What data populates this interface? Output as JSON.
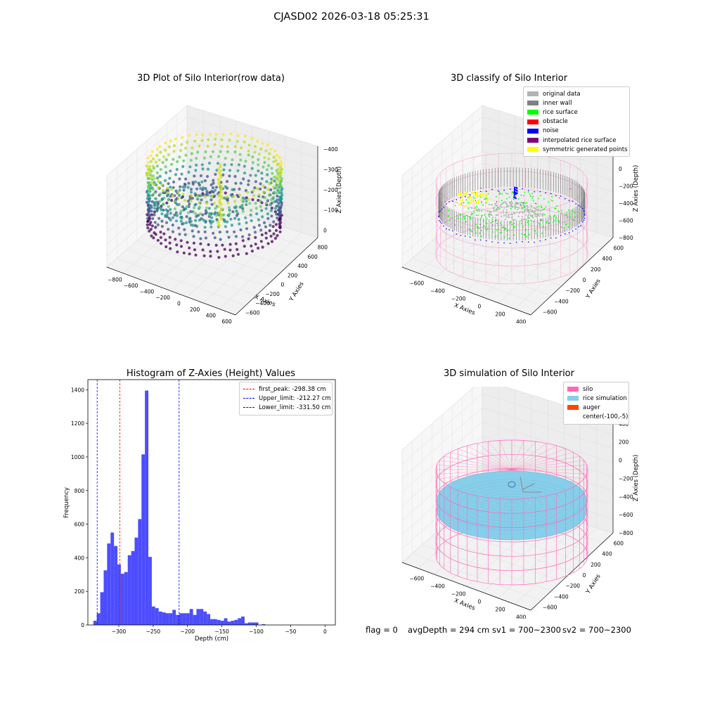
{
  "figure": {
    "suptitle": "CJASD02 2026-03-18 05:25:31",
    "status": {
      "flag": "flag = 0",
      "avg_depth": "avgDepth = 294 cm",
      "sv1": "sv1 = 700~2300",
      "sv2": "sv2 = 700~2300"
    }
  },
  "chart_data": [
    {
      "type": "scatter",
      "title": "3D Plot of Silo Interior(row data)",
      "xlabel": "X Axies",
      "ylabel": "Y Axies",
      "zlabel": "Z Axies (Depth)",
      "x_ticks": [
        "−800",
        "−600",
        "−400",
        "−200",
        "0",
        "200",
        "400",
        "600"
      ],
      "y_ticks": [
        "−600",
        "−400",
        "−200",
        "0",
        "200",
        "400",
        "600",
        "800"
      ],
      "z_ticks": [
        "−400",
        "−300",
        "−200",
        "−100",
        "0"
      ],
      "xlim": [
        -900,
        650
      ],
      "ylim": [
        -650,
        850
      ],
      "zlim": [
        -450,
        10
      ],
      "colormap": "viridis"
    },
    {
      "type": "scatter",
      "title": "3D classify of Silo Interior",
      "xlabel": "X Axies",
      "ylabel": "Y Axies",
      "zlabel": "Z Axies (Depth)",
      "x_ticks": [
        "−600",
        "−400",
        "−200",
        "0",
        "200",
        "400"
      ],
      "y_ticks": [
        "−600",
        "−400",
        "−200",
        "0",
        "200",
        "400",
        "600"
      ],
      "z_ticks": [
        "−800",
        "−600",
        "−400",
        "−200",
        "0",
        "200"
      ],
      "legend_position": "upper-right",
      "legend": [
        {
          "label": "original data",
          "color": "#b3b3b3"
        },
        {
          "label": "inner wall",
          "color": "#808080"
        },
        {
          "label": "rice surface",
          "color": "#00ff00"
        },
        {
          "label": "obstacle",
          "color": "#ff0000"
        },
        {
          "label": "noise",
          "color": "#0000ff"
        },
        {
          "label": "interpolated rice surface",
          "color": "#800080"
        },
        {
          "label": "symmetric generated points",
          "color": "#ffff00"
        }
      ]
    },
    {
      "type": "bar",
      "title": "Histogram of Z-Axies (Height) Values",
      "xlabel": "Depth (cm)",
      "ylabel": "Frequency",
      "xlim": [
        -345,
        15
      ],
      "ylim": [
        0,
        1460
      ],
      "x_ticks": [
        -300,
        -250,
        -200,
        -150,
        -100,
        -50,
        0
      ],
      "x_tick_labels": [
        "−300",
        "−250",
        "−200",
        "−150",
        "−100",
        "−50",
        "0"
      ],
      "y_ticks": [
        0,
        200,
        400,
        600,
        800,
        1000,
        1200,
        1400
      ],
      "bin_start": -337,
      "bin_width": 5,
      "values": [
        25,
        70,
        195,
        325,
        485,
        550,
        470,
        360,
        305,
        315,
        415,
        440,
        520,
        630,
        1015,
        1395,
        405,
        110,
        100,
        80,
        75,
        70,
        70,
        90,
        60,
        70,
        70,
        70,
        95,
        60,
        95,
        95,
        80,
        65,
        35,
        35,
        30,
        25,
        40,
        20,
        25,
        30,
        40,
        50,
        10,
        15,
        15,
        15,
        0,
        5
      ],
      "bar_color": "#4d4dff",
      "legend_position": "upper-right",
      "reference_lines": [
        {
          "label": "first_peak: -298.38 cm",
          "x": -298.38,
          "color": "#ff0000"
        },
        {
          "label": "Upper_limit: -212.27 cm",
          "x": -212.27,
          "color": "#0000ff"
        },
        {
          "label": "Lower_limit: -331.50 cm",
          "x": -331.5,
          "color": "#0000ff"
        }
      ]
    },
    {
      "type": "scatter",
      "title": "3D simulation of Silo Interior",
      "xlabel": "X Axies",
      "ylabel": "Y Axies",
      "zlabel": "Z Axies (Depth)",
      "x_ticks": [
        "−600",
        "−400",
        "−200",
        "0",
        "200",
        "400"
      ],
      "y_ticks": [
        "−600",
        "−400",
        "−200",
        "0",
        "200",
        "400",
        "600"
      ],
      "z_ticks": [
        "−800",
        "−600",
        "−400",
        "−200",
        "0",
        "200",
        "400"
      ],
      "legend_position": "upper-right",
      "legend": [
        {
          "label": "silo",
          "color": "#ff69b4"
        },
        {
          "label": "rice simulation",
          "color": "#87ceeb"
        },
        {
          "label": "auger",
          "color": "#ff4500"
        },
        {
          "label": "center(-100,-5)",
          "color": "#ffffff"
        }
      ]
    }
  ]
}
